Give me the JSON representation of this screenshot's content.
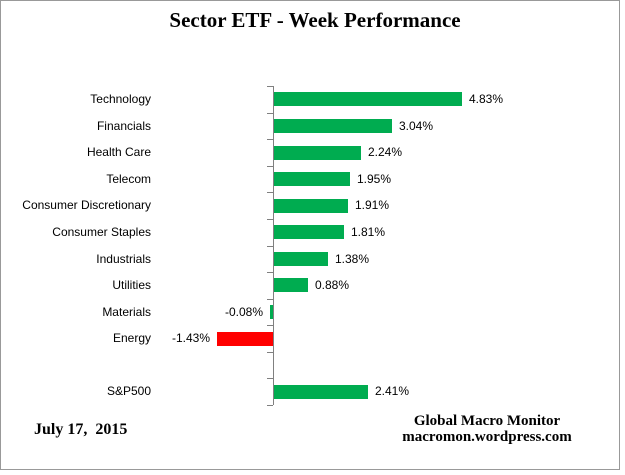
{
  "chart_data": {
    "type": "bar",
    "orientation": "horizontal",
    "title": "Sector ETF - Week Performance",
    "categories": [
      "Technology",
      "Financials",
      "Health Care",
      "Telecom",
      "Consumer Discretionary",
      "Consumer Staples",
      "Industrials",
      "Utilities",
      "Materials",
      "Energy",
      "",
      "S&P500"
    ],
    "rows": [
      {
        "label": "Technology",
        "value": 4.83,
        "display": "4.83%",
        "color": "#00AC50",
        "spacer": false
      },
      {
        "label": "Financials",
        "value": 3.04,
        "display": "3.04%",
        "color": "#00AC50",
        "spacer": false
      },
      {
        "label": "Health Care",
        "value": 2.24,
        "display": "2.24%",
        "color": "#00AC50",
        "spacer": false
      },
      {
        "label": "Telecom",
        "value": 1.95,
        "display": "1.95%",
        "color": "#00AC50",
        "spacer": false
      },
      {
        "label": "Consumer Discretionary",
        "value": 1.91,
        "display": "1.91%",
        "color": "#00AC50",
        "spacer": false
      },
      {
        "label": "Consumer Staples",
        "value": 1.81,
        "display": "1.81%",
        "color": "#00AC50",
        "spacer": false
      },
      {
        "label": "Industrials",
        "value": 1.38,
        "display": "1.38%",
        "color": "#00AC50",
        "spacer": false
      },
      {
        "label": "Utilities",
        "value": 0.88,
        "display": "0.88%",
        "color": "#00AC50",
        "spacer": false
      },
      {
        "label": "Materials",
        "value": -0.08,
        "display": "-0.08%",
        "color": "#00AC50",
        "spacer": false
      },
      {
        "label": "Energy",
        "value": -1.43,
        "display": "-1.43%",
        "color": "#FF0000",
        "spacer": false
      },
      {
        "label": "",
        "value": null,
        "display": "",
        "color": "",
        "spacer": true
      },
      {
        "label": "S&P500",
        "value": 2.41,
        "display": "2.41%",
        "color": "#00AC50",
        "spacer": false
      }
    ],
    "positive_color": "#00AC50",
    "negative_highlight_color": "#FF0000",
    "axis_color": "#808080",
    "value_label_format": "0.00%",
    "gridlines": false,
    "legend": "none",
    "xlim": [
      -2,
      5
    ]
  },
  "footer": {
    "date": "July 17,  2015",
    "source_name": "Global Macro Monitor",
    "source_url": "macromon.wordpress.com"
  }
}
